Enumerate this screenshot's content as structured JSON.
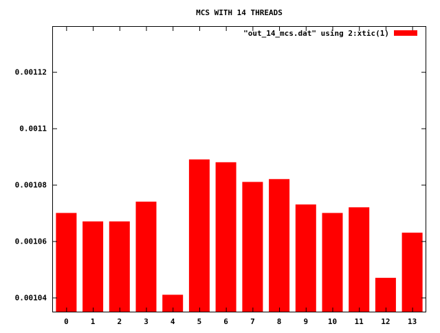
{
  "chart_data": {
    "type": "bar",
    "title": "MCS WITH 14 THREADS",
    "xlabel": "",
    "ylabel": "",
    "categories": [
      "0",
      "1",
      "2",
      "3",
      "4",
      "5",
      "6",
      "7",
      "8",
      "9",
      "10",
      "11",
      "12",
      "13"
    ],
    "series": [
      {
        "name": "\"out_14_mcs.dat\" using 2:xtic(1)",
        "color": "#ff0000",
        "values": [
          0.00107,
          0.001067,
          0.001067,
          0.001074,
          0.001041,
          0.001089,
          0.001088,
          0.001081,
          0.001082,
          0.001073,
          0.00107,
          0.001072,
          0.001047,
          0.001063
        ]
      }
    ],
    "ylim": [
      0.001035,
      0.001136
    ],
    "yticks": [
      0.00104,
      0.00106,
      0.00108,
      0.0011,
      0.00112
    ],
    "ytick_labels": [
      "0.00104",
      "0.00106",
      "0.00108",
      "0.0011",
      "0.00112"
    ],
    "grid": false,
    "legend_position": "top-right"
  }
}
